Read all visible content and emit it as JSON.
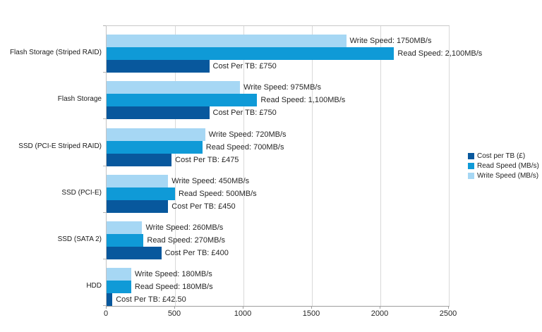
{
  "chart_data": {
    "type": "bar",
    "orientation": "horizontal",
    "title": "",
    "xlabel": "",
    "ylabel": "",
    "xlim": [
      0,
      2500
    ],
    "x_ticks": [
      0,
      500,
      1000,
      1500,
      2000,
      2500
    ],
    "grid": true,
    "legend_position": "right",
    "categories": [
      "Flash Storage (Striped RAID)",
      "Flash Storage",
      "SSD (PCI-E Striped RAID)",
      "SSD (PCI-E)",
      "SSD (SATA 2)",
      "HDD"
    ],
    "series": [
      {
        "name": "Write Speed (MB/s)",
        "color": "#A6D7F4",
        "values": [
          1750,
          975,
          720,
          450,
          260,
          180
        ],
        "bar_labels": [
          "Write Speed: 1750MB/s",
          "Write Speed: 975MB/s",
          "Write Speed: 720MB/s",
          "Write Speed: 450MB/s",
          "Write Speed: 260MB/s",
          "Write Speed: 180MB/s"
        ]
      },
      {
        "name": "Read Speed (MB/s)",
        "color": "#0F9AD7",
        "values": [
          2100,
          1100,
          700,
          500,
          270,
          180
        ],
        "bar_labels": [
          "Read Speed: 2,100MB/s",
          "Read Speed: 1,100MB/s",
          "Read Speed: 700MB/s",
          "Read Speed: 500MB/s",
          "Read Speed: 270MB/s",
          "Read Speed: 180MB/s"
        ]
      },
      {
        "name": "Cost per TB (£)",
        "color": "#08589D",
        "values": [
          750,
          750,
          475,
          450,
          400,
          42.5
        ],
        "bar_labels": [
          "Cost Per TB: £750",
          "Cost Per TB: £750",
          "Cost Per TB: £475",
          "Cost Per TB: £450",
          "Cost Per TB: £400",
          "Cost Per TB: £42.50"
        ]
      }
    ],
    "legend": {
      "items": [
        {
          "label": "Cost per TB (£)",
          "color": "#08589D"
        },
        {
          "label": "Read Speed (MB/s)",
          "color": "#0F9AD7"
        },
        {
          "label": "Write Speed (MB/s)",
          "color": "#A6D7F4"
        }
      ]
    }
  }
}
